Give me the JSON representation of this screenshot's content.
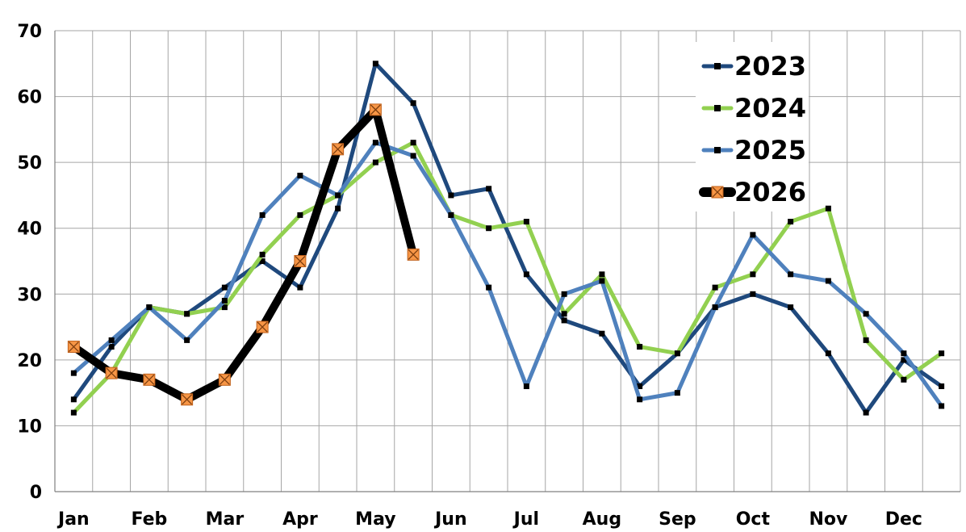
{
  "chart_data": {
    "type": "line",
    "month_labels": [
      "Jan",
      "Feb",
      "Mar",
      "Apr",
      "May",
      "Jun",
      "Jul",
      "Aug",
      "Sep",
      "Oct",
      "Nov",
      "Dec"
    ],
    "y_ticks": [
      "0",
      "10",
      "20",
      "30",
      "40",
      "50",
      "60",
      "70"
    ],
    "ylim": [
      0,
      70
    ],
    "grid": true,
    "legend_position": "top-right",
    "series": [
      {
        "name": "2023",
        "color": "#1f497d",
        "marker": "square",
        "values": [
          14,
          22,
          28,
          27,
          31,
          35,
          31,
          43,
          65,
          59,
          45,
          46,
          33,
          26,
          24,
          16,
          21,
          28,
          30,
          28,
          21,
          12,
          20,
          16
        ]
      },
      {
        "name": "2024",
        "color": "#92d050",
        "marker": "square",
        "values": [
          12,
          18,
          28,
          27,
          28,
          36,
          42,
          45,
          50,
          53,
          42,
          40,
          41,
          27,
          33,
          22,
          21,
          31,
          33,
          41,
          43,
          23,
          17,
          21
        ]
      },
      {
        "name": "2025",
        "color": "#4f81bd",
        "marker": "square",
        "values": [
          18,
          23,
          28,
          23,
          29,
          42,
          48,
          45,
          53,
          51,
          42,
          31,
          16,
          30,
          32,
          14,
          15,
          28,
          39,
          33,
          32,
          27,
          21,
          13
        ]
      },
      {
        "name": "2026",
        "color": "#000000",
        "marker": "orange-x-square",
        "marker_color": "#f79646",
        "values": [
          22,
          18,
          17,
          14,
          17,
          25,
          35,
          52,
          58,
          36
        ]
      }
    ]
  }
}
